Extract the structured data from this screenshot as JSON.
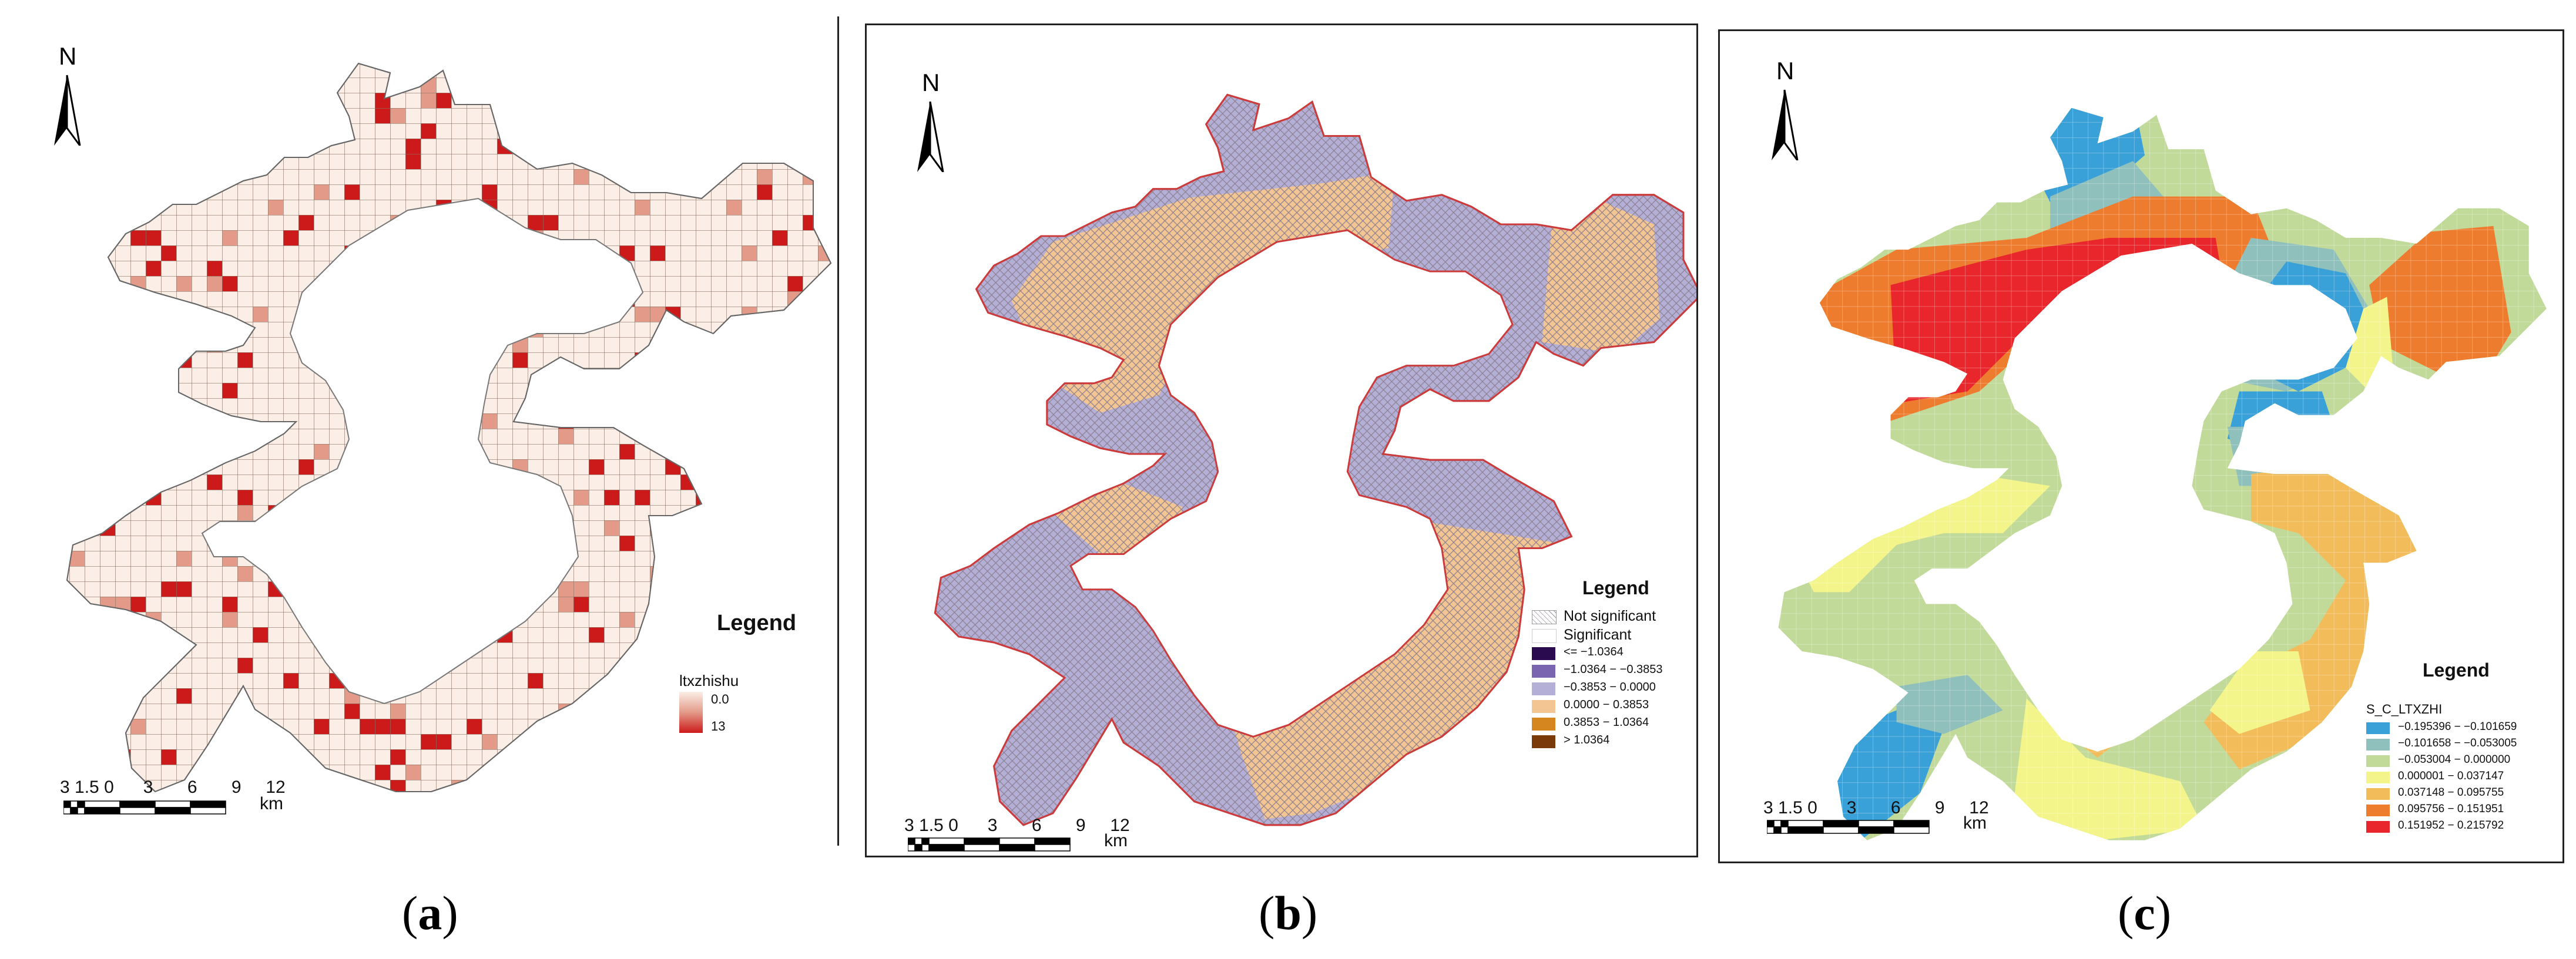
{
  "north_label": "N",
  "scale": {
    "ticks": [
      "3",
      "1.5",
      "0",
      "3",
      "6",
      "9",
      "12"
    ],
    "unit": "km"
  },
  "panels": {
    "a": {
      "caption": "a",
      "legend": {
        "title": "Legend",
        "field": "ltxzhishu",
        "min_label": "0.0",
        "max_label": "13",
        "ramp": [
          "#fbeee6",
          "#e39a88",
          "#cc1a1a"
        ]
      }
    },
    "b": {
      "caption": "b",
      "legend": {
        "title": "Legend",
        "pattern_items": [
          "Not significant",
          "Significant"
        ],
        "classes": [
          {
            "label": "<= −1.0364",
            "color": "#2a0b4f"
          },
          {
            "label": "−1.0364 − −0.3853",
            "color": "#7a66b0"
          },
          {
            "label": "−0.3853 − 0.0000",
            "color": "#b4afd6"
          },
          {
            "label": "0.0000 − 0.3853",
            "color": "#f2c592"
          },
          {
            "label": "0.3853 − 1.0364",
            "color": "#d6861f"
          },
          {
            "label": "> 1.0364",
            "color": "#7a3a0a"
          }
        ]
      }
    },
    "c": {
      "caption": "c",
      "legend": {
        "title": "Legend",
        "field": "S_C_LTXZHI",
        "classes": [
          {
            "label": "−0.195396 − −0.101659",
            "color": "#3aa0d8"
          },
          {
            "label": "−0.101658 − −0.053005",
            "color": "#8fc0bb"
          },
          {
            "label": "−0.053004 − 0.000000",
            "color": "#c1da9a"
          },
          {
            "label": "0.000001 − 0.037147",
            "color": "#f3f58a"
          },
          {
            "label": "0.037148 − 0.095755",
            "color": "#f3bc5a"
          },
          {
            "label": "0.095756 − 0.151951",
            "color": "#ee7c2f"
          },
          {
            "label": "0.151952 − 0.215792",
            "color": "#e8262b"
          }
        ]
      }
    }
  }
}
